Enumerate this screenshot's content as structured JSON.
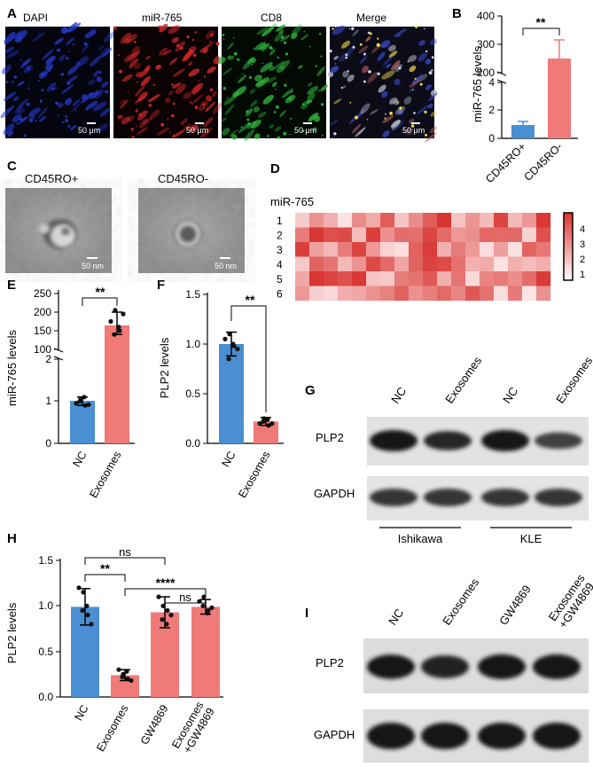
{
  "panel_letters": {
    "A": "A",
    "B": "B",
    "C": "C",
    "D": "D",
    "E": "E",
    "F": "F",
    "G": "G",
    "H": "H",
    "I": "I"
  },
  "panelA": {
    "channels": [
      {
        "label": "DAPI",
        "color": "#2438c8"
      },
      {
        "label": "miR-765",
        "color": "#d02828"
      },
      {
        "label": "CD8",
        "color": "#2fb03a"
      },
      {
        "label": "Merge",
        "color": "#7a7fa8"
      }
    ],
    "scale_bar": "50 μm"
  },
  "panelC": {
    "images": [
      {
        "label": "CD45RO+"
      },
      {
        "label": "CD45RO-"
      }
    ],
    "scale_bar": "50 nm"
  },
  "panelD": {
    "row_title": "miR-765",
    "rows": [
      "1",
      "2",
      "3",
      "4",
      "5",
      "6"
    ],
    "colorbar_ticks": [
      "4",
      "3",
      "2",
      "1"
    ],
    "colors": {
      "low": "#fde8e8",
      "high": "#d7302c"
    }
  },
  "panelG": {
    "lanes": [
      "NC",
      "Exosomes",
      "NC",
      "Exosomes"
    ],
    "bands": [
      "PLP2",
      "GAPDH"
    ],
    "groups": [
      "Ishikawa",
      "KLE"
    ],
    "intensity": {
      "PLP2": [
        1.0,
        0.75,
        1.0,
        0.45
      ],
      "GAPDH": [
        0.6,
        0.6,
        0.6,
        0.6
      ]
    }
  },
  "panelI": {
    "lanes": [
      "NC",
      "Exosomes",
      "GW4869",
      "Exosomes\n+GW4869"
    ],
    "bands": [
      "PLP2",
      "GAPDH"
    ],
    "intensity": {
      "PLP2": [
        0.95,
        0.8,
        1.0,
        1.0
      ],
      "GAPDH": [
        0.95,
        0.95,
        0.95,
        0.95
      ]
    }
  },
  "chart_data": [
    {
      "panel": "B",
      "type": "bar",
      "categories": [
        "CD45RO+",
        "CD45RO-"
      ],
      "values": [
        1,
        255
      ],
      "errors": [
        0.15,
        60
      ],
      "ylabel": "miR-765 levels",
      "yticks_upper": [
        "200",
        "300",
        "400"
      ],
      "yticks_lower": [
        "0",
        "2",
        "4"
      ],
      "significance": "**",
      "colors": [
        "#4a8fd2",
        "#f07a78"
      ]
    },
    {
      "panel": "E",
      "type": "bar",
      "categories": [
        "NC",
        "Exosomes"
      ],
      "values": [
        1,
        170
      ],
      "errors": [
        0.1,
        30
      ],
      "ylabel": "miR-765 levels",
      "yticks_upper": [
        "100",
        "150",
        "200",
        "250"
      ],
      "yticks_lower": [
        "0",
        "1",
        "2"
      ],
      "points": {
        "NC": [
          0.95,
          1.05,
          0.9,
          1.0,
          1.1,
          0.92
        ],
        "Exosomes": [
          175,
          205,
          150,
          140,
          160,
          195
        ]
      },
      "significance": "**",
      "colors": [
        "#4a8fd2",
        "#f07a78"
      ]
    },
    {
      "panel": "F",
      "type": "bar",
      "categories": [
        "NC",
        "Exosomes"
      ],
      "values": [
        1.0,
        0.22
      ],
      "errors": [
        0.12,
        0.04
      ],
      "ylabel": "PLP2 levels",
      "ylim": [
        0,
        1.5
      ],
      "yticks": [
        "0.0",
        "0.5",
        "1.0",
        "1.5"
      ],
      "points": {
        "NC": [
          1.05,
          1.1,
          0.98,
          0.85,
          1.0,
          0.95
        ],
        "Exosomes": [
          0.2,
          0.25,
          0.18,
          0.22,
          0.24,
          0.2
        ]
      },
      "significance": "**",
      "colors": [
        "#4a8fd2",
        "#f07a78"
      ]
    },
    {
      "panel": "H",
      "type": "bar",
      "categories": [
        "NC",
        "Exosomes",
        "GW4869",
        "Exosomes\n+GW4869"
      ],
      "values": [
        0.99,
        0.24,
        0.93,
        0.99
      ],
      "errors": [
        0.2,
        0.06,
        0.17,
        0.08
      ],
      "ylabel": "PLP2 levels",
      "ylim": [
        0,
        1.5
      ],
      "yticks": [
        "0.0",
        "0.5",
        "1.0",
        "1.5"
      ],
      "points": {
        "NC": [
          1.2,
          1.15,
          0.9,
          0.95,
          1.0,
          0.8
        ],
        "Exosomes": [
          0.3,
          0.25,
          0.2,
          0.22,
          0.28,
          0.18
        ],
        "GW4869": [
          1.1,
          1.0,
          0.95,
          0.85,
          0.8,
          0.9
        ],
        "Exosomes\n+GW4869": [
          1.05,
          1.1,
          0.95,
          1.0,
          0.92,
          0.98
        ]
      },
      "comparisons": [
        {
          "from": 0,
          "to": 2,
          "label": "ns"
        },
        {
          "from": 0,
          "to": 1,
          "label": "**"
        },
        {
          "from": 1,
          "to": 3,
          "label": "****"
        },
        {
          "from": 2,
          "to": 3,
          "label": "ns"
        }
      ],
      "colors": [
        "#4a8fd2",
        "#f07a78",
        "#f07a78",
        "#f07a78"
      ]
    }
  ]
}
